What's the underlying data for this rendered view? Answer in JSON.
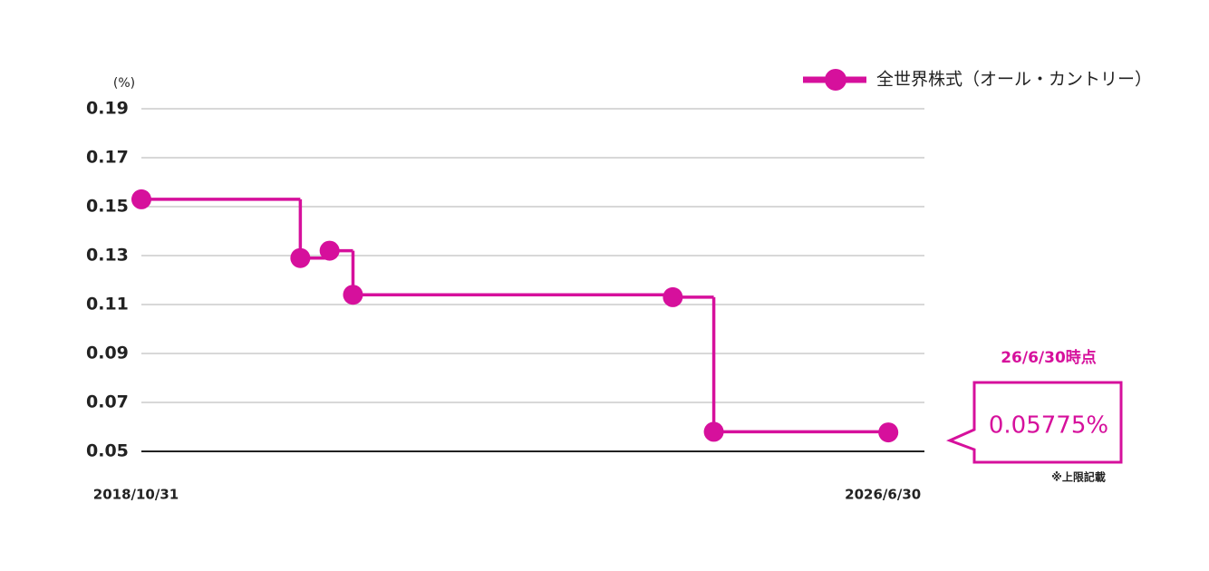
{
  "chart_data": {
    "type": "line",
    "step": true,
    "y_label": "(%)",
    "x": [
      2018.83,
      2020.46,
      2020.76,
      2021.0,
      2024.28,
      2024.7,
      2026.49
    ],
    "series": [
      {
        "name": "全世界株式（オール・カントリー）",
        "color": "#d6109c",
        "values": [
          0.153,
          0.129,
          0.132,
          0.114,
          0.113,
          0.058,
          0.05775
        ],
        "value_labels": [
          null,
          null,
          null,
          null,
          null,
          null,
          "0.05775%"
        ]
      }
    ],
    "xlim": [
      2018.83,
      2026.86
    ],
    "ylim": [
      0.05,
      0.19
    ],
    "xticks": [
      {
        "value": 2018.83,
        "label": "2018/10/31"
      },
      {
        "value": 2026.49,
        "label": "2026/6/30"
      }
    ],
    "yticks": [
      0.05,
      0.07,
      0.09,
      0.11,
      0.13,
      0.15,
      0.17,
      0.19
    ],
    "grid": true,
    "legend": "top-right",
    "annotations": [
      "26/6/30時点",
      "※上限記載"
    ]
  }
}
